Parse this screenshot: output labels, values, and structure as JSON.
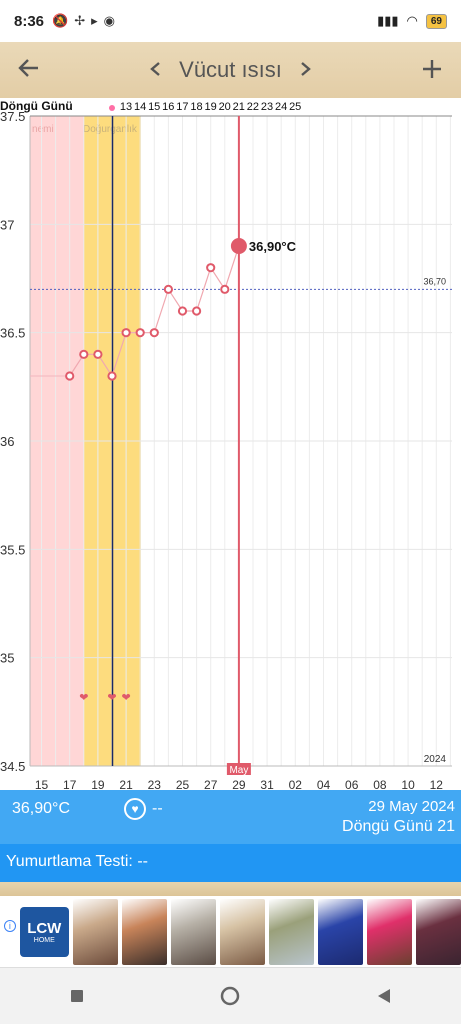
{
  "status_bar": {
    "time": "8:36",
    "battery": "69"
  },
  "app_bar": {
    "title": "Vücut ısısı",
    "back_icon": "arrow-left-icon",
    "prev_icon": "chevron-left-icon",
    "next_icon": "chevron-right-icon",
    "add_icon": "plus-icon"
  },
  "chart_data": {
    "type": "line",
    "y_ticks": [
      "37.5",
      "37",
      "36.5",
      "36",
      "35.5",
      "35",
      "34.5"
    ],
    "ylim": [
      34.5,
      37.5
    ],
    "cycle_label": "Döngü Günü",
    "cycle_days": [
      "13",
      "14",
      "15",
      "16",
      "17",
      "18",
      "19",
      "20",
      "21",
      "22",
      "23",
      "24",
      "25"
    ],
    "x_ticks": [
      "15",
      "17",
      "19",
      "21",
      "23",
      "25",
      "27",
      "29",
      "31",
      "02",
      "04",
      "06",
      "08",
      "10",
      "12"
    ],
    "zones": [
      {
        "label": "nemi",
        "color": "#ffd6d6"
      },
      {
        "label": "Doğurganlık",
        "color": "#fddc7e"
      }
    ],
    "coverline": {
      "value": 36.7,
      "label": "36,70"
    },
    "month_label": "May",
    "year_label": "2024",
    "selected": {
      "label": "36,90°C",
      "value": 36.9
    },
    "series": [
      {
        "values": [
          {
            "day": "17",
            "temp": 36.3
          },
          {
            "day": "18",
            "temp": 36.4
          },
          {
            "day": "19",
            "temp": 36.4
          },
          {
            "day": "20",
            "temp": 36.3
          },
          {
            "day": "21",
            "temp": 36.5
          },
          {
            "day": "22",
            "temp": 36.5
          },
          {
            "day": "23",
            "temp": 36.5
          },
          {
            "day": "24",
            "temp": 36.7
          },
          {
            "day": "25",
            "temp": 36.6
          },
          {
            "day": "26",
            "temp": 36.6
          },
          {
            "day": "27",
            "temp": 36.8
          },
          {
            "day": "28",
            "temp": 36.7
          },
          {
            "day": "29",
            "temp": 36.9
          }
        ]
      }
    ],
    "heart_days": [
      "18",
      "20",
      "21"
    ]
  },
  "info": {
    "temp": "36,90°C",
    "dash": "--",
    "date": "29 May 2024",
    "cycle": "Döngü Günü 21"
  },
  "test": {
    "label": "Yumurtlama Testi: --"
  },
  "ad": {
    "brand": "LCW",
    "brand_sub": "HOME"
  },
  "colors": {
    "accent": "#e05a6a",
    "panel": "#42a8f3",
    "test_bar": "#2196f3"
  }
}
